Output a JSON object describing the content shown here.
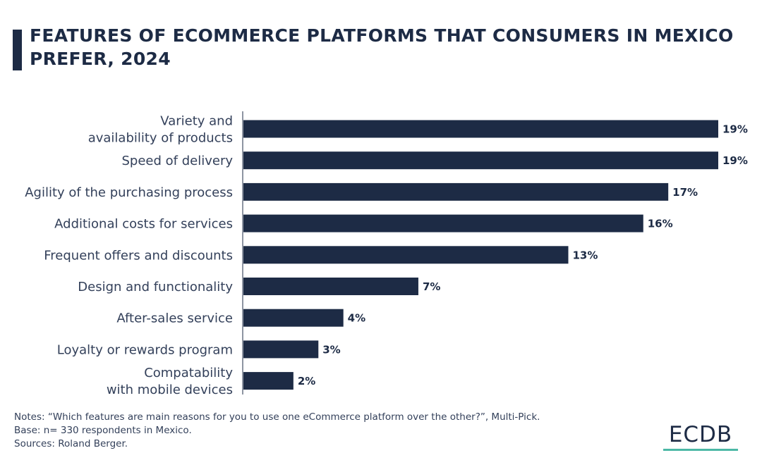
{
  "title": "FEATURES OF ECOMMERCE PLATFORMS THAT CONSUMERS IN MEXICO PREFER, 2024",
  "chart_data": {
    "type": "bar",
    "orientation": "horizontal",
    "title": "FEATURES OF ECOMMERCE PLATFORMS THAT CONSUMERS IN MEXICO PREFER, 2024",
    "categories": [
      "Variety and\navailability of products",
      "Speed of delivery",
      "Agility of the purchasing process",
      "Additional costs for services",
      "Frequent offers and discounts",
      "Design and functionality",
      "After-sales service",
      "Loyalty or rewards program",
      "Compatability\nwith mobile devices"
    ],
    "values": [
      19,
      19,
      17,
      16,
      13,
      7,
      4,
      3,
      2
    ],
    "value_labels": [
      "19%",
      "19%",
      "17%",
      "16%",
      "13%",
      "7%",
      "4%",
      "3%",
      "2%"
    ],
    "unit": "%",
    "xlim": [
      0,
      19
    ],
    "grid": false,
    "legend": "none",
    "bar_color": "#1d2b45"
  },
  "notes": [
    "Notes: “Which features are main reasons for you to use one eCommerce platform over the other?”, Multi-Pick.",
    "Base: n= 330 respondents in Mexico.",
    "Sources: Roland Berger."
  ],
  "logo": {
    "text": "ECDB",
    "underline_color": "#4cb8a6"
  }
}
